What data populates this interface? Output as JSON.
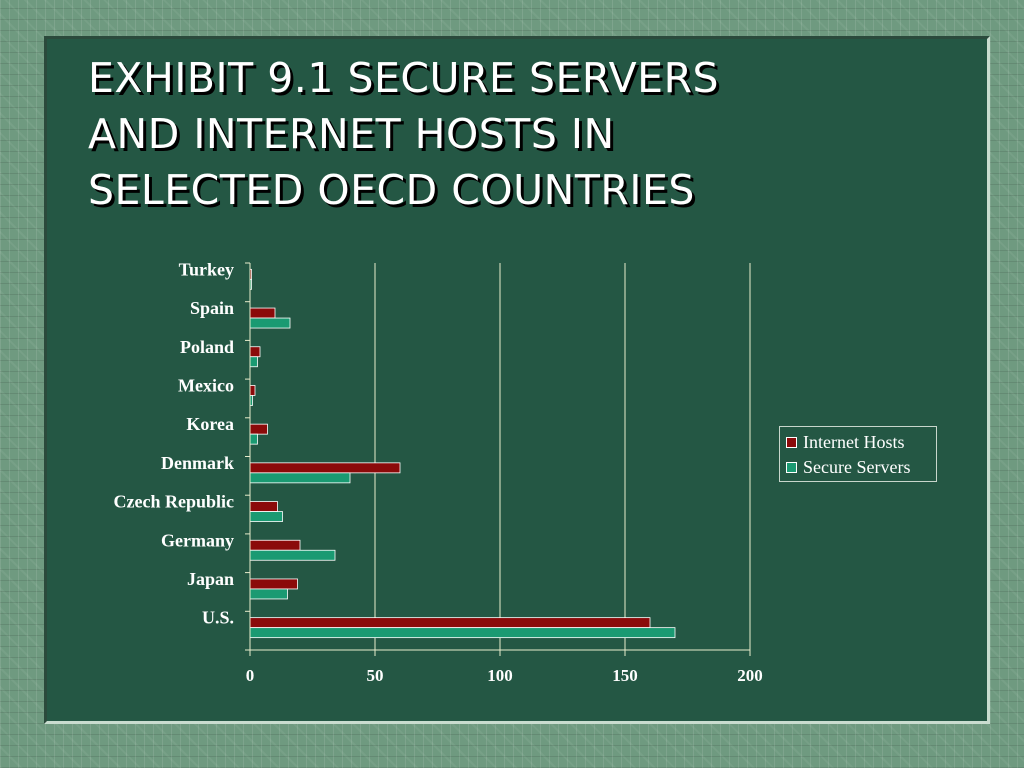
{
  "slide": {
    "title": "EXHIBIT 9.1  SECURE SERVERS\nAND INTERNET HOSTS IN\nSELECTED OECD COUNTRIES"
  },
  "colors": {
    "internet_hosts": "#8b0a0a",
    "secure_servers": "#1a9a72",
    "panel_background": "#245744",
    "text": "#ffffff",
    "gridline": "#e8eccb"
  },
  "chart_data": {
    "type": "bar",
    "orientation": "horizontal",
    "categories": [
      "Turkey",
      "Spain",
      "Poland",
      "Mexico",
      "Korea",
      "Denmark",
      "Czech Republic",
      "Germany",
      "Japan",
      "U.S."
    ],
    "series": [
      {
        "name": "Internet Hosts",
        "values": [
          0.5,
          10,
          4,
          2,
          7,
          60,
          11,
          20,
          19,
          160
        ]
      },
      {
        "name": "Secure Servers",
        "values": [
          0.5,
          16,
          3,
          1,
          3,
          40,
          13,
          34,
          15,
          170
        ]
      }
    ],
    "xlim": [
      0,
      200
    ],
    "xticks": [
      "0",
      "50",
      "100",
      "150",
      "200"
    ],
    "grid": "vertical",
    "legend_position": "right"
  }
}
